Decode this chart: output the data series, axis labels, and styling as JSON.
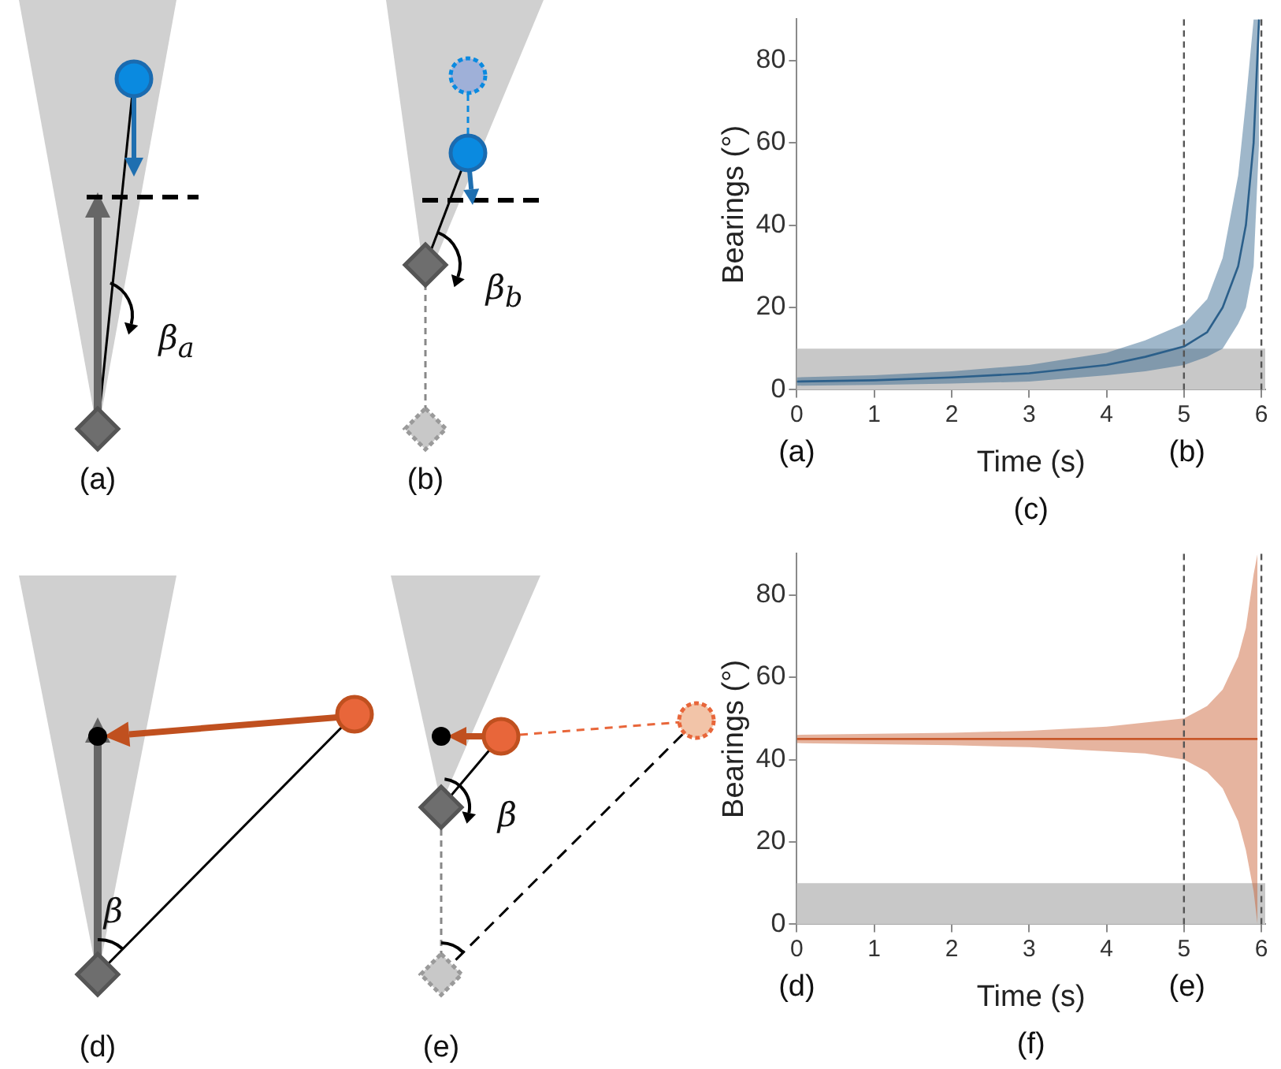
{
  "chart_data": [
    {
      "type": "line",
      "xlabel": "Time (s)",
      "ylabel": "Bearings (°)",
      "xlim": [
        0,
        6.05
      ],
      "xticks": [
        0,
        1,
        2,
        3,
        4,
        5,
        6
      ],
      "ylim": [
        0,
        90
      ],
      "yticks": [
        0,
        20,
        40,
        60,
        80
      ],
      "x": [
        0,
        1,
        2,
        3,
        4,
        4.5,
        5,
        5.3,
        5.5,
        5.7,
        5.8,
        5.9,
        5.97
      ],
      "series": [
        {
          "color": "#2b5f8a",
          "values": [
            2,
            2.3,
            3,
            4,
            6,
            8,
            10.5,
            14,
            20,
            30,
            40,
            60,
            90
          ],
          "lower": [
            1,
            1.2,
            1.5,
            2,
            3.5,
            4.5,
            6,
            8,
            10,
            16,
            20,
            30,
            60
          ],
          "upper": [
            3,
            3.5,
            4.5,
            6,
            9,
            12,
            16,
            22,
            32,
            52,
            70,
            90,
            90
          ]
        }
      ],
      "ref_lines": [
        {
          "axis": "x",
          "value": 5,
          "color": "#555555",
          "line_style": "dashed"
        },
        {
          "axis": "x",
          "value": 6,
          "color": "#555555",
          "line_style": "dashed"
        }
      ],
      "bands": [
        {
          "axis": "y",
          "from": 0,
          "to": 10,
          "color": "#c8c8c8"
        }
      ],
      "annotations": [
        "(a)",
        "(b)",
        "(c)",
        "(a)",
        "(b)",
        "β$_{a}$",
        "β$_{b}$"
      ]
    },
    {
      "type": "line",
      "xlabel": "Time (s)",
      "ylabel": "Bearings (°)",
      "xlim": [
        0,
        6.05
      ],
      "xticks": [
        0,
        1,
        2,
        3,
        4,
        5,
        6
      ],
      "ylim": [
        0,
        90
      ],
      "yticks": [
        0,
        20,
        40,
        60,
        80
      ],
      "x": [
        0,
        2,
        3,
        4,
        4.5,
        5,
        5.3,
        5.5,
        5.7,
        5.8,
        5.9,
        5.95
      ],
      "series": [
        {
          "color": "#c8582a",
          "values": [
            45,
            45,
            45,
            45,
            45,
            45,
            45,
            45,
            45,
            45,
            45,
            45
          ],
          "lower": [
            44,
            43.5,
            43,
            42,
            41.5,
            40,
            37,
            33,
            25,
            18,
            8,
            0
          ],
          "upper": [
            46,
            46.5,
            47,
            48,
            49,
            50,
            53,
            57,
            65,
            72,
            85,
            90
          ]
        }
      ],
      "ref_lines": [
        {
          "axis": "x",
          "value": 5,
          "color": "#555555",
          "line_style": "dashed"
        },
        {
          "axis": "x",
          "value": 6,
          "color": "#555555",
          "line_style": "dashed"
        }
      ],
      "bands": [
        {
          "axis": "y",
          "from": 0,
          "to": 10,
          "color": "#c8c8c8"
        }
      ],
      "annotations": [
        "(d)",
        "(e)",
        "(f)",
        "(d)",
        "(e)",
        "β",
        "β"
      ]
    }
  ]
}
